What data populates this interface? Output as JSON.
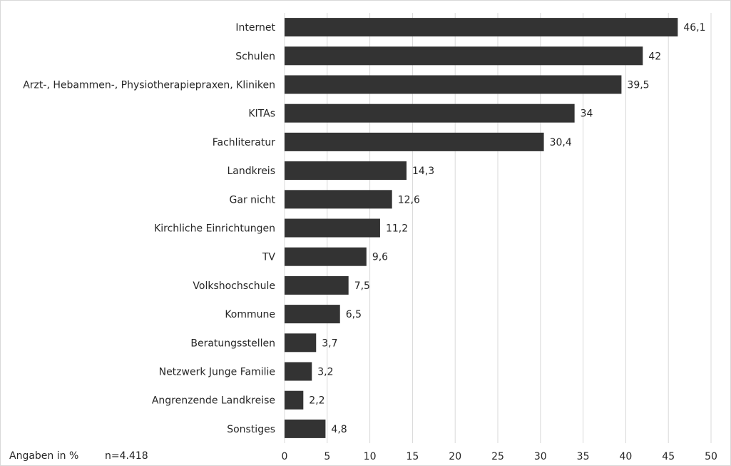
{
  "chart_data": {
    "type": "bar",
    "orientation": "horizontal",
    "categories": [
      "Internet",
      "Schulen",
      "Arzt-, Hebammen-, Physiotherapiepraxen, Kliniken",
      "KITAs",
      "Fachliteratur",
      "Landkreis",
      "Gar nicht",
      "Kirchliche Einrichtungen",
      "TV",
      "Volkshochschule",
      "Kommune",
      "Beratungsstellen",
      "Netzwerk Junge Familie",
      "Angrenzende Landkreise",
      "Sonstiges"
    ],
    "values": [
      46.1,
      42,
      39.5,
      34,
      30.4,
      14.3,
      12.6,
      11.2,
      9.6,
      7.5,
      6.5,
      3.7,
      3.2,
      2.2,
      4.8
    ],
    "value_labels": [
      "46,1",
      "42",
      "39,5",
      "34",
      "30,4",
      "14,3",
      "12,6",
      "11,2",
      "9,6",
      "7,5",
      "6,5",
      "3,7",
      "3,2",
      "2,2",
      "4,8"
    ],
    "xlim": [
      0,
      50
    ],
    "xticks": [
      0,
      5,
      10,
      15,
      20,
      25,
      30,
      35,
      40,
      45,
      50
    ],
    "grid": "vertical",
    "bar_color": "#333333",
    "grid_color": "#d9d9d9"
  },
  "footnote": {
    "unit_label": "Angaben in %",
    "sample_label": "n=4.418"
  }
}
